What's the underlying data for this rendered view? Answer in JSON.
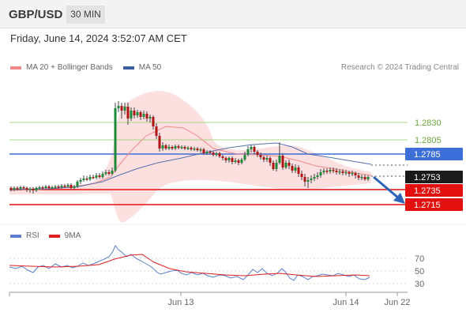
{
  "header": {
    "symbol": "GBP/USD",
    "timeframe": "30 MIN"
  },
  "datetime": "Friday, June 14, 2024 3:52:07 AM CET",
  "legend": {
    "bb": {
      "label": "MA 20 + Bollinger Bands",
      "color": "#f08a8a"
    },
    "ma50": {
      "label": "MA 50",
      "color": "#3b5fa0"
    }
  },
  "credit": "Research © 2024 Trading Central",
  "levels": [
    {
      "price": "1.2830",
      "kind": "resistance-green"
    },
    {
      "price": "1.2805",
      "kind": "resistance-green"
    },
    {
      "price": "1.2785",
      "kind": "pivot"
    },
    {
      "price": "1.2753",
      "kind": "current"
    },
    {
      "price": "1.2735",
      "kind": "target"
    },
    {
      "price": "1.2715",
      "kind": "target"
    }
  ],
  "rsi": {
    "legend_rsi": "RSI",
    "legend_ma": "9MA",
    "rsi_color": "#5b7fd0",
    "ma_color": "#e02020",
    "levels": [
      "70",
      "50",
      "30"
    ]
  },
  "xaxis": [
    "Jun 13",
    "Jun 14",
    "Jun 22"
  ],
  "colors": {
    "green_level": "#8cc860",
    "pivot": "#3d6fd8",
    "target": "#e31010",
    "current_bg": "#1a1a1a",
    "bull": "#1d8a3a",
    "bear": "#b01515",
    "band": "#fbd9d9"
  }
}
